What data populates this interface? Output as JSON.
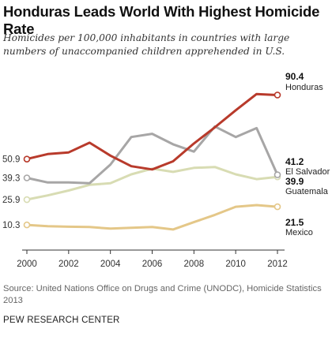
{
  "chart_data": {
    "type": "line",
    "title": "Honduras Leads World With Highest Homicide Rate",
    "subtitle": "Homicides per 100,000 inhabitants in countries with large numbers of unaccompanied children apprehended in U.S.",
    "x": [
      2000,
      2001,
      2002,
      2003,
      2004,
      2005,
      2006,
      2007,
      2008,
      2009,
      2010,
      2011,
      2012
    ],
    "x_ticks": [
      "2000",
      "2002",
      "2004",
      "2006",
      "2008",
      "2010",
      "2012"
    ],
    "y_ticks": [
      "50.9",
      "39.3",
      "25.9",
      "10.3"
    ],
    "ylim": [
      5,
      95
    ],
    "grid": false,
    "series": [
      {
        "name": "Honduras",
        "color": "#b83a2b",
        "end_label": "90.4",
        "values": [
          50.9,
          54.0,
          55.0,
          61.0,
          53.0,
          46.5,
          44.5,
          49.5,
          60.5,
          70.5,
          81.0,
          91.0,
          90.4
        ]
      },
      {
        "name": "El Salvador",
        "color": "#a7a6a6",
        "end_label": "41.2",
        "values": [
          39.3,
          36.5,
          36.5,
          36.0,
          47.5,
          64.5,
          66.5,
          60.0,
          55.5,
          71.0,
          64.5,
          70.0,
          41.2
        ]
      },
      {
        "name": "Guatemala",
        "color": "#d8dcb3",
        "end_label": "39.9",
        "values": [
          25.9,
          28.5,
          31.5,
          35.0,
          36.0,
          41.5,
          45.0,
          43.0,
          45.5,
          46.0,
          41.5,
          38.5,
          39.9
        ]
      },
      {
        "name": "Mexico",
        "color": "#e4c788",
        "end_label": "21.5",
        "values": [
          10.3,
          9.5,
          9.2,
          9.0,
          8.0,
          8.5,
          9.0,
          7.5,
          12.0,
          16.5,
          21.5,
          22.5,
          21.5
        ]
      }
    ]
  },
  "source": "Source: United Nations Office on Drugs and Crime (UNODC), Homicide Statistics 2013",
  "organization": "PEW RESEARCH CENTER"
}
